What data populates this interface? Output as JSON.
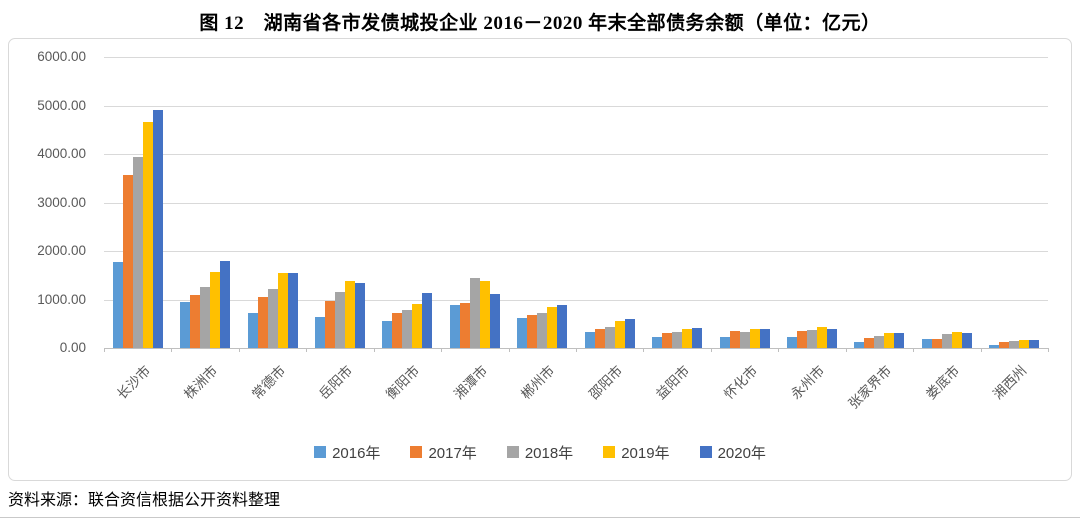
{
  "page": {
    "title": "图 12　湖南省各市发债城投企业 2016－2020 年末全部债务余额（单位：亿元）",
    "source_note": "资料来源：联合资信根据公开资料整理"
  },
  "chart_data": {
    "type": "bar",
    "title": "图 12　湖南省各市发债城投企业 2016－2020 年末全部债务余额（单位：亿元）",
    "unit": "亿元",
    "categories": [
      "长沙市",
      "株洲市",
      "常德市",
      "岳阳市",
      "衡阳市",
      "湘潭市",
      "郴州市",
      "邵阳市",
      "益阳市",
      "怀化市",
      "永州市",
      "张家界市",
      "娄底市",
      "湘西州"
    ],
    "series": [
      {
        "name": "2016年",
        "color": "#5B9BD5",
        "values": [
          1780,
          950,
          730,
          640,
          560,
          890,
          620,
          340,
          230,
          230,
          220,
          130,
          190,
          70
        ]
      },
      {
        "name": "2017年",
        "color": "#ED7D31",
        "values": [
          3570,
          1100,
          1050,
          960,
          730,
          930,
          690,
          390,
          300,
          360,
          350,
          210,
          180,
          120
        ]
      },
      {
        "name": "2018年",
        "color": "#A5A5A5",
        "values": [
          3930,
          1250,
          1210,
          1150,
          790,
          1440,
          730,
          430,
          330,
          340,
          380,
          250,
          280,
          140
        ]
      },
      {
        "name": "2019年",
        "color": "#FFC000",
        "values": [
          4660,
          1560,
          1540,
          1390,
          900,
          1390,
          850,
          550,
          400,
          400,
          430,
          310,
          330,
          170
        ]
      },
      {
        "name": "2020年",
        "color": "#4472C4",
        "values": [
          4910,
          1790,
          1550,
          1340,
          1130,
          1110,
          880,
          590,
          410,
          390,
          390,
          310,
          300,
          160
        ]
      }
    ],
    "ylim": [
      0,
      6000
    ],
    "ytick_step": 1000,
    "yticks": [
      "0.00",
      "1000.00",
      "2000.00",
      "3000.00",
      "4000.00",
      "5000.00",
      "6000.00"
    ],
    "grid": true,
    "legend_position": "bottom",
    "gridline_color": "#d9d9d9",
    "axis_text_color": "#595959"
  }
}
